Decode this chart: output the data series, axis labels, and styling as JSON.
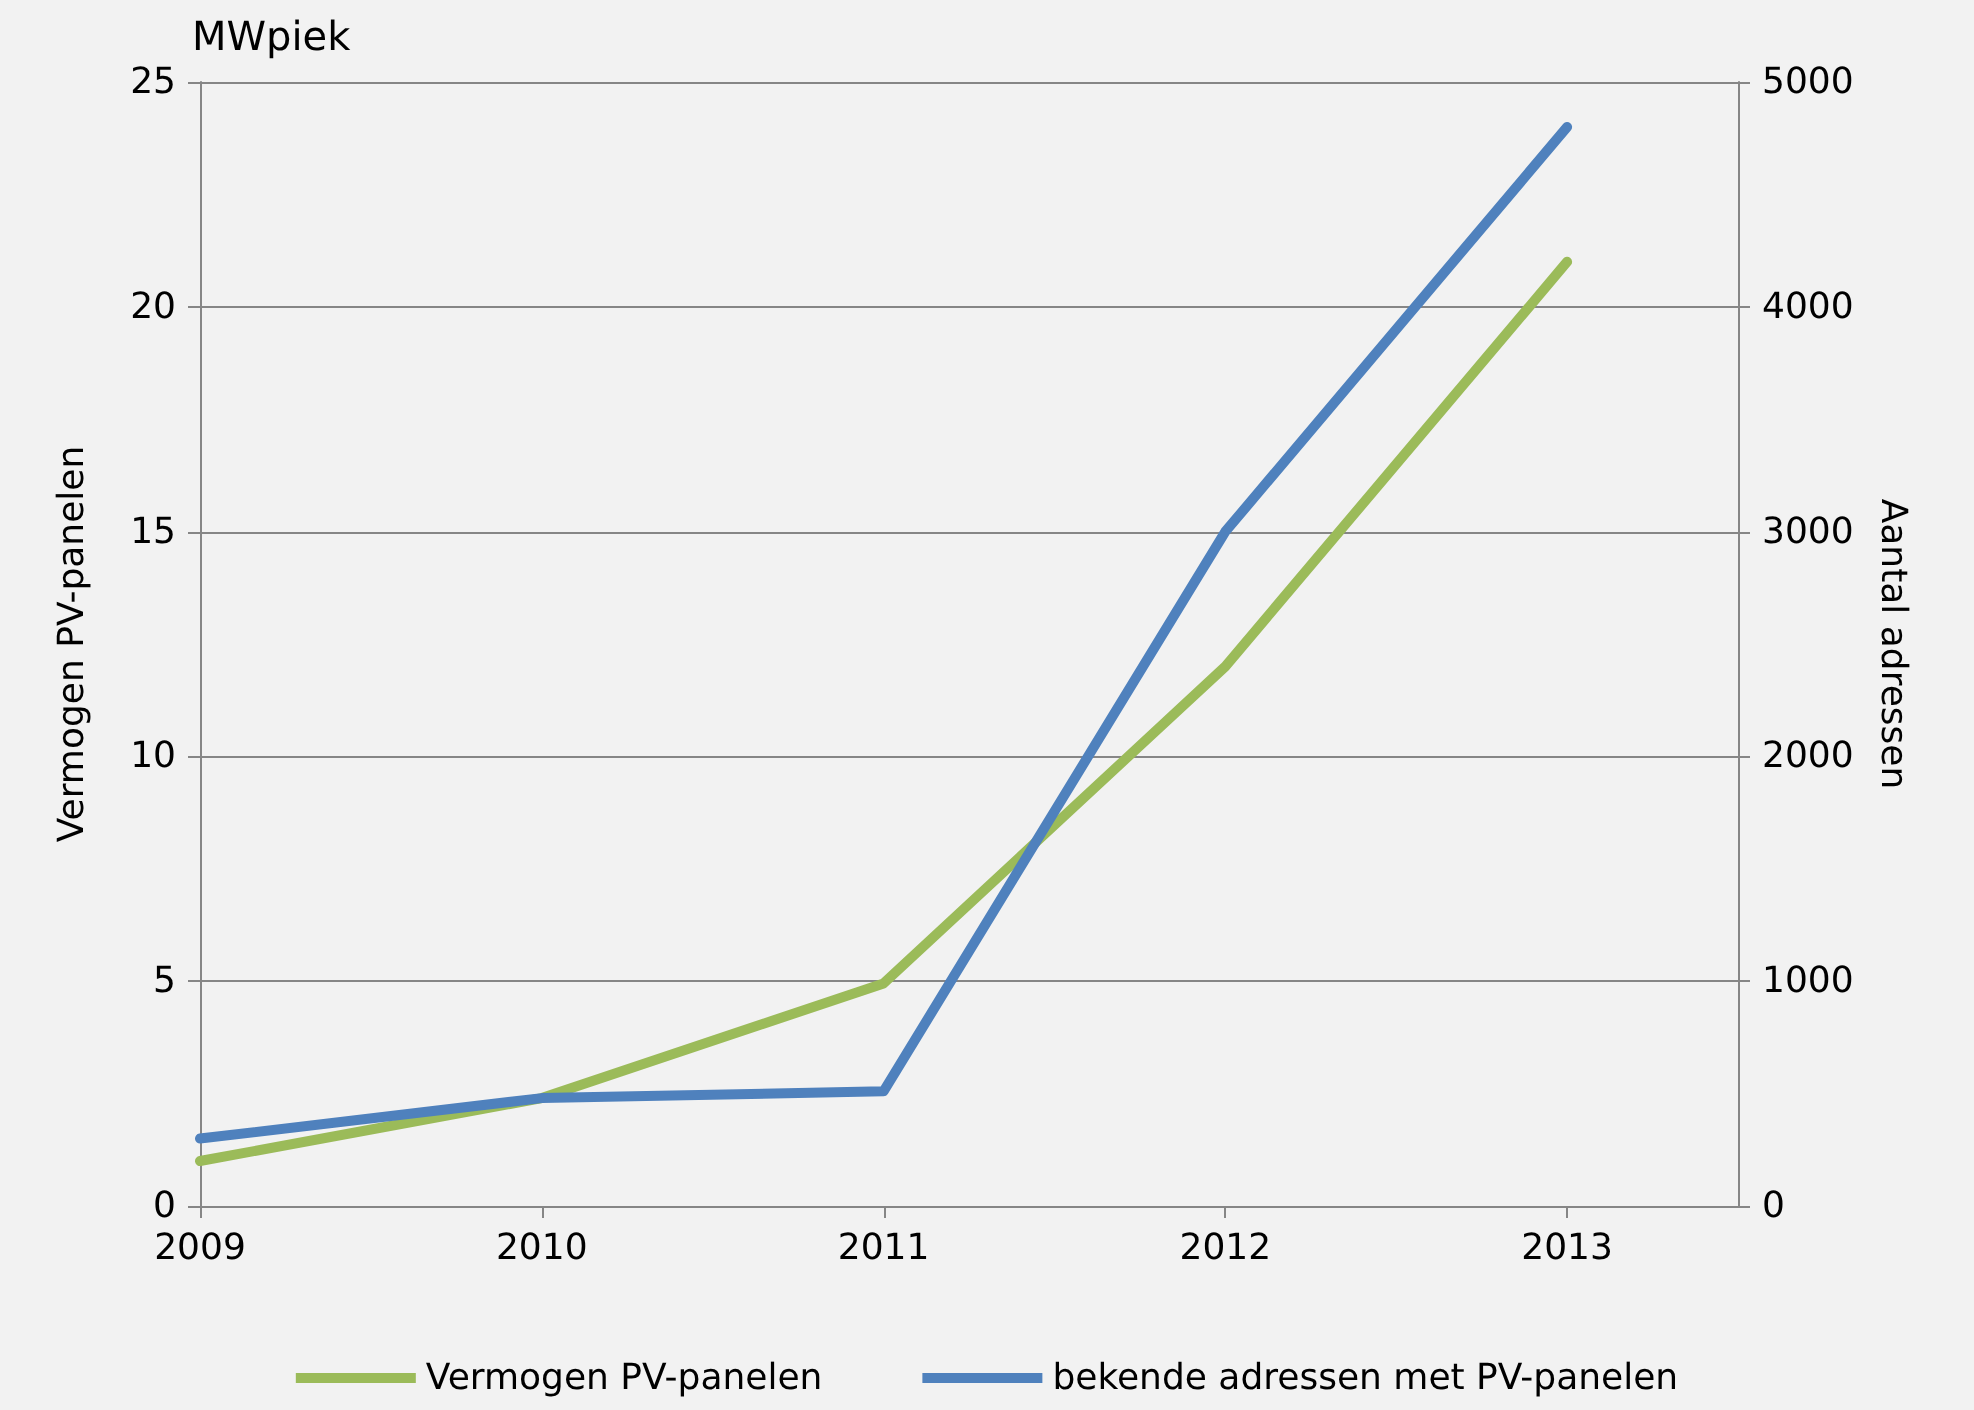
{
  "chart_data": {
    "type": "line",
    "x": [
      2009,
      2010,
      2011,
      2012,
      2013
    ],
    "series": [
      {
        "name": "Vermogen PV-panelen",
        "color": "#9bbb59",
        "values": [
          1.0,
          2.4,
          4.95,
          12.0,
          21.0
        ]
      },
      {
        "name": "bekende adressen met PV-panelen",
        "color": "#4f81bd",
        "values": [
          300,
          480,
          510,
          3000,
          4800
        ],
        "axis": "y2"
      }
    ],
    "xlim": [
      2009,
      2013.5
    ],
    "xticks": [
      2009,
      2010,
      2011,
      2012,
      2013
    ],
    "ylim": [
      0,
      25
    ],
    "yticks": [
      0,
      5,
      10,
      15,
      20,
      25
    ],
    "y2lim": [
      0,
      5000
    ],
    "y2ticks": [
      0,
      1000,
      2000,
      3000,
      4000,
      5000
    ],
    "ylabel": "Vermogen PV-panelen",
    "y2label": "Aantal adressen",
    "annotations": [
      "MWpiek"
    ],
    "grid": "y",
    "legend": "bottom",
    "marker": "none",
    "line_style": "solid"
  }
}
